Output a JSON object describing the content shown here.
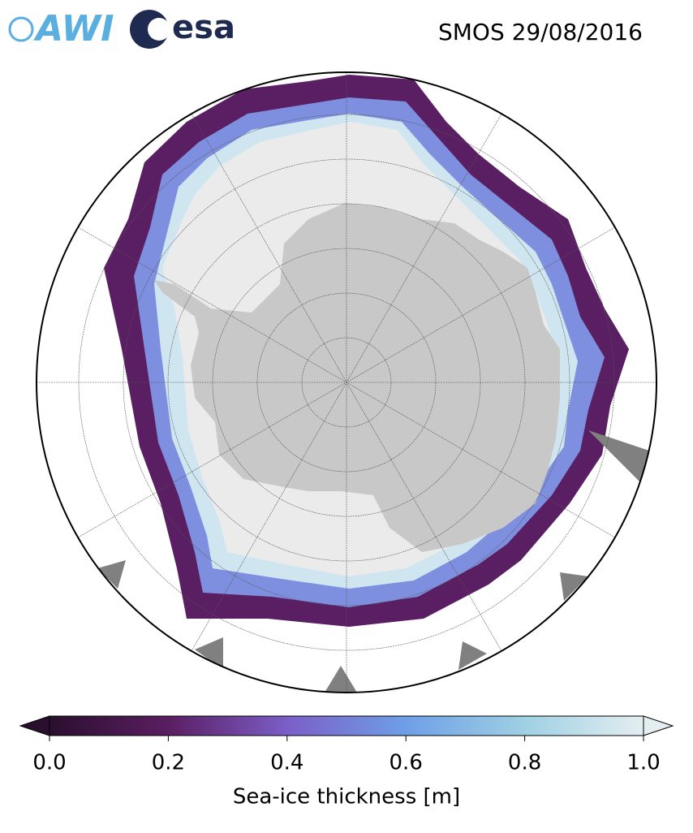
{
  "header": {
    "title": "SMOS 29/08/2016",
    "logos": [
      "AWI",
      "esa"
    ]
  },
  "colorbar": {
    "label": "Sea-ice thickness [m]",
    "range": [
      0,
      1
    ],
    "ticks": [
      {
        "value": 0,
        "label": "0.0"
      },
      {
        "value": 0.2,
        "label": "0.2"
      },
      {
        "value": 0.4,
        "label": "0.4"
      },
      {
        "value": 0.6,
        "label": "0.6"
      },
      {
        "value": 0.8,
        "label": "0.8"
      },
      {
        "value": 1,
        "label": "1.0"
      }
    ],
    "colors": [
      "#2a0f2e",
      "#5a1e62",
      "#7b5ec8",
      "#6e9fe6",
      "#9fd0e4",
      "#e4eef0"
    ]
  }
}
